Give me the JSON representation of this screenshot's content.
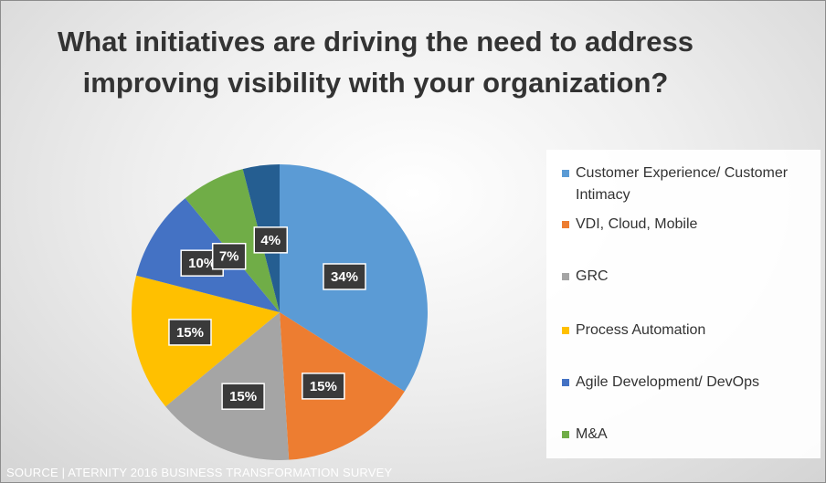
{
  "chart_data": {
    "type": "pie",
    "title": "What initiatives are driving the need to address improving visibility with your organization?",
    "slices": [
      {
        "label": "Customer Experience/ Customer Intimacy",
        "value": 34,
        "display": "34%",
        "color": "#5b9bd5"
      },
      {
        "label": "VDI, Cloud, Mobile",
        "value": 15,
        "display": "15%",
        "color": "#ed7d31"
      },
      {
        "label": "GRC",
        "value": 15,
        "display": "15%",
        "color": "#a5a5a5"
      },
      {
        "label": "Process Automation",
        "value": 15,
        "display": "15%",
        "color": "#ffc000"
      },
      {
        "label": "Agile Development/ DevOps",
        "value": 10,
        "display": "10%",
        "color": "#4472c4"
      },
      {
        "label": "M&A",
        "value": 7,
        "display": "7%",
        "color": "#70ad47"
      },
      {
        "label": "",
        "value": 4,
        "display": "4%",
        "color": "#255e91"
      }
    ],
    "legend_position": "right"
  },
  "source": "SOURCE | ATERNITY 2016 BUSINESS TRANSFORMATION SURVEY"
}
